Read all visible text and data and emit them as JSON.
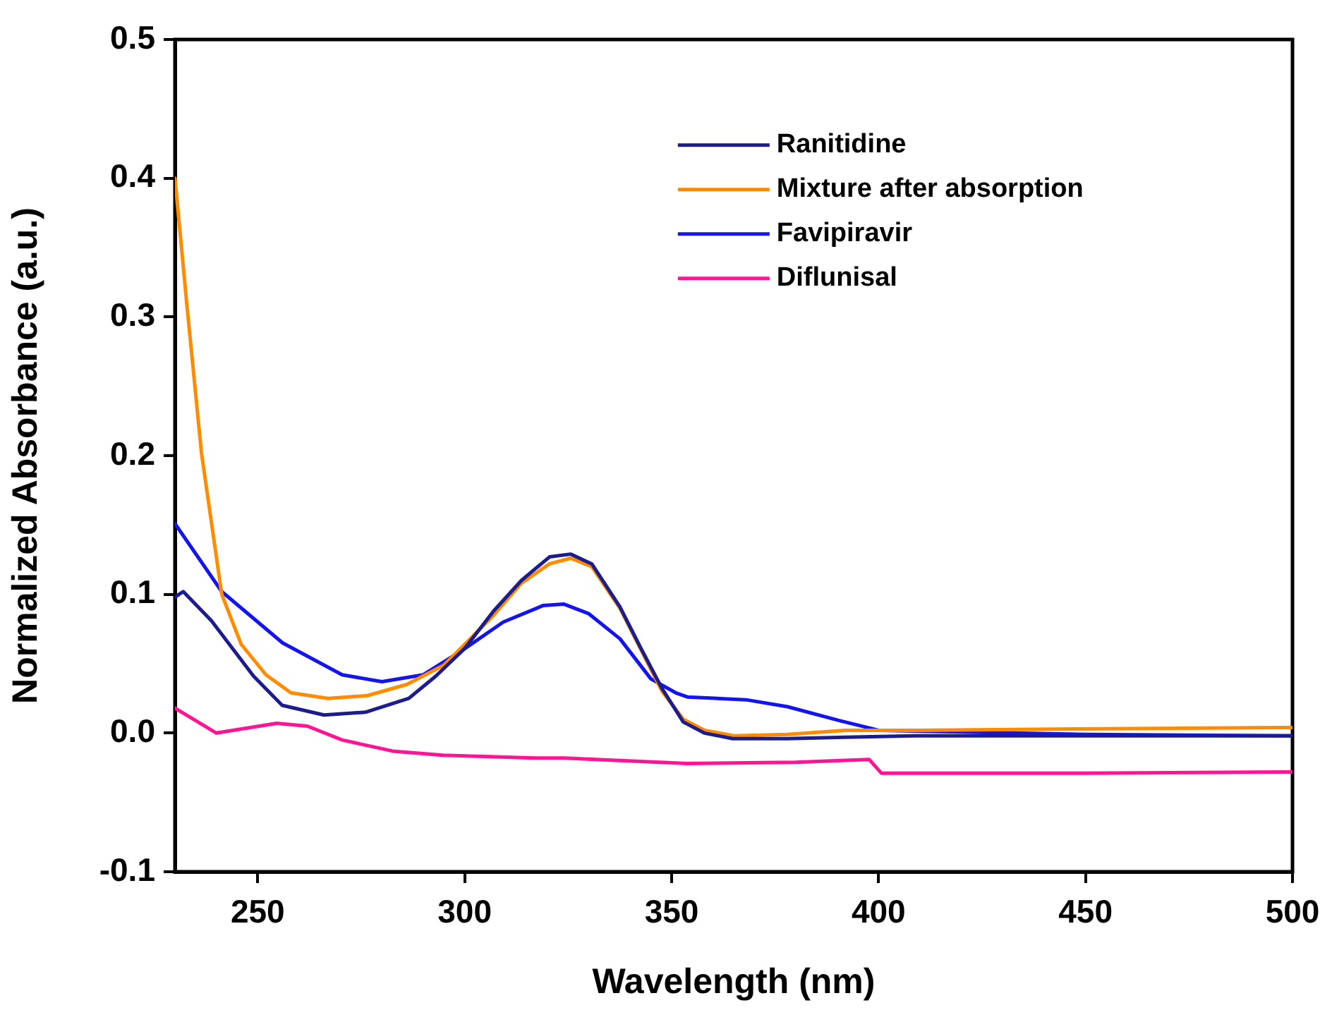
{
  "chart_data": {
    "type": "line",
    "xlabel": "Wavelength (nm)",
    "ylabel": "Normalized Absorbance (a.u.)",
    "xlim": [
      230,
      500
    ],
    "xticks": [
      250,
      300,
      350,
      400,
      450,
      500
    ],
    "ylim": [
      -0.1,
      0.5
    ],
    "yticks": [
      -0.1,
      {
        "value": 0,
        "label": "0.0"
      },
      0.1,
      0.2,
      0.3,
      0.4,
      0.5
    ],
    "grid": false,
    "legend": "top right",
    "marker": "none",
    "line_style": "solid",
    "series": [
      {
        "name": "Ranitidine",
        "color": "#1c1c8c",
        "x": [
          230,
          232,
          238.8,
          249,
          255.9,
          266,
          276,
          286.5,
          293,
          300,
          307,
          313.7,
          320.5,
          325.6,
          330.7,
          337.5,
          342.6,
          347.7,
          352.8,
          357.9,
          364.7,
          378,
          392,
          409,
          450,
          500
        ],
        "values": [
          0.098,
          0.102,
          0.081,
          0.041,
          0.02,
          0.013,
          0.015,
          0.025,
          0.041,
          0.061,
          0.088,
          0.11,
          0.127,
          0.129,
          0.122,
          0.091,
          0.061,
          0.032,
          0.008,
          0,
          -0.004,
          -0.004,
          -0.003,
          -0.002,
          -0.002,
          -0.002
        ]
      },
      {
        "name": "Mixture after absorption",
        "color": "#ff8c00",
        "x": [
          230,
          232.8,
          236.4,
          241.3,
          246,
          252,
          258,
          267,
          276.5,
          286,
          295,
          307,
          313.7,
          320.5,
          325.6,
          330.7,
          337.5,
          342.6,
          347.7,
          352.8,
          358,
          365,
          378,
          392,
          409,
          450,
          500
        ],
        "values": [
          0.4,
          0.311,
          0.202,
          0.1,
          0.064,
          0.042,
          0.029,
          0.025,
          0.027,
          0.035,
          0.049,
          0.085,
          0.108,
          0.122,
          0.126,
          0.12,
          0.09,
          0.06,
          0.03,
          0.01,
          0.002,
          -0.002,
          -0.001,
          0.002,
          0.002,
          0.003,
          0.004
        ]
      },
      {
        "name": "Favipiravir",
        "color": "#1414f0",
        "x": [
          230,
          241.3,
          256,
          270.4,
          280,
          290,
          299.6,
          309.3,
          319,
          323.9,
          330,
          337.5,
          345,
          351,
          353.8,
          368,
          378,
          390.5,
          400,
          450,
          500
        ],
        "values": [
          0.151,
          0.102,
          0.065,
          0.042,
          0.037,
          0.042,
          0.06,
          0.08,
          0.092,
          0.093,
          0.086,
          0.068,
          0.039,
          0.029,
          0.026,
          0.024,
          0.019,
          0.009,
          0.002,
          -0.001,
          -0.002
        ]
      },
      {
        "name": "Diflunisal",
        "color": "#ff1493",
        "x": [
          230,
          240,
          254.6,
          262,
          270.4,
          282.6,
          294.7,
          317,
          324,
          353.8,
          380,
          397.7,
          400.7,
          450,
          500
        ],
        "values": [
          0.018,
          0,
          0.007,
          0.005,
          -0.005,
          -0.013,
          -0.016,
          -0.018,
          -0.018,
          -0.022,
          -0.021,
          -0.019,
          -0.029,
          -0.029,
          -0.028
        ]
      }
    ]
  }
}
